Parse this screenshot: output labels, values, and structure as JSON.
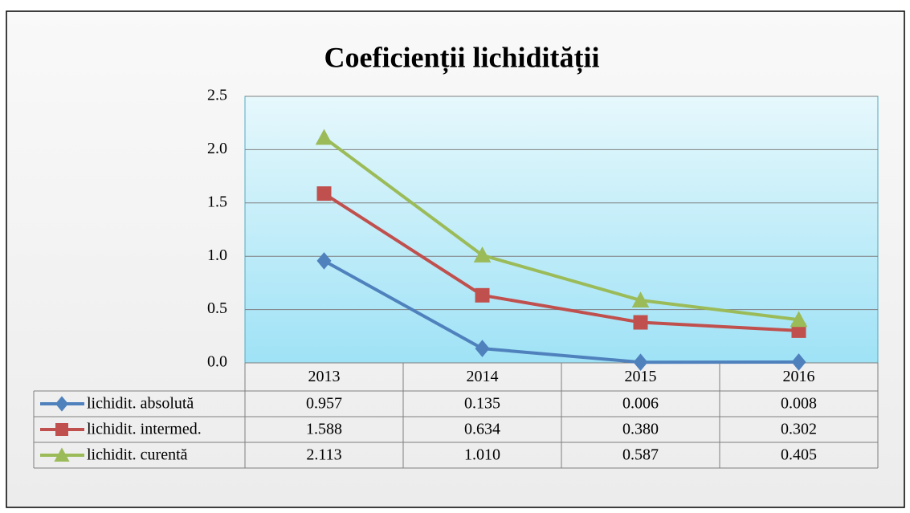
{
  "chart_data": {
    "type": "line",
    "title": "Coeficienții lichidității",
    "categories": [
      "2013",
      "2014",
      "2015",
      "2016"
    ],
    "series": [
      {
        "name": "lichidit. absolută",
        "color": "#4f81bd",
        "marker": "diamond",
        "values": [
          0.957,
          0.135,
          0.006,
          0.008
        ],
        "value_labels": [
          "0.957",
          "0.135",
          "0.006",
          "0.008"
        ]
      },
      {
        "name": "lichidit. intermed.",
        "color": "#c0504d",
        "marker": "square",
        "values": [
          1.588,
          0.634,
          0.38,
          0.302
        ],
        "value_labels": [
          "1.588",
          "0.634",
          "0.380",
          "0.302"
        ]
      },
      {
        "name": "lichidit. curentă",
        "color": "#9bbb59",
        "marker": "triangle",
        "values": [
          2.113,
          1.01,
          0.587,
          0.405
        ],
        "value_labels": [
          "2.113",
          "1.010",
          "0.587",
          "0.405"
        ]
      }
    ],
    "ylim": [
      0,
      2.5
    ],
    "yticks": [
      {
        "value": 0,
        "label": "0.0"
      },
      0.5,
      {
        "value": 1,
        "label": "1.0"
      },
      1.5,
      {
        "value": 2,
        "label": "2.0"
      },
      2.5
    ],
    "grid": true,
    "data_table": true
  }
}
